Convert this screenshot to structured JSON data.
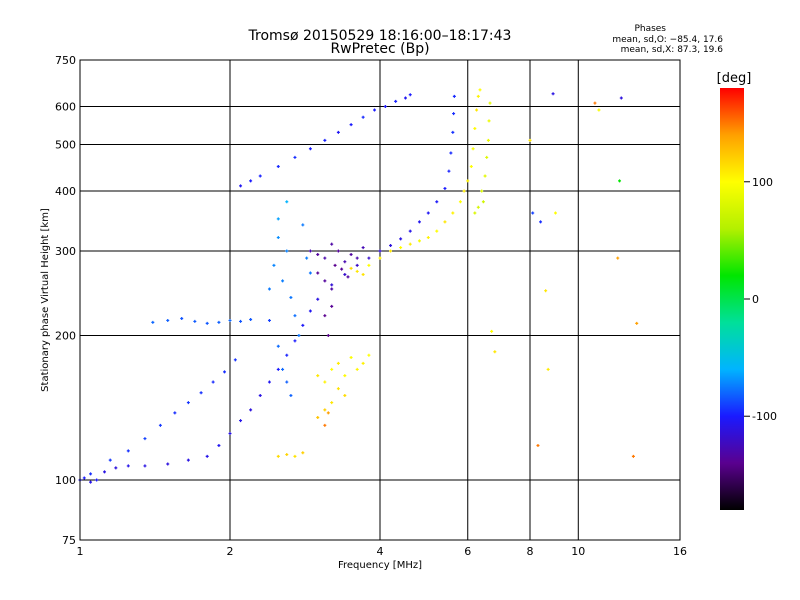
{
  "chart_data": {
    "type": "scatter",
    "title": "Tromsø 20150529 18:16:00–18:17:43",
    "subtitle": "RwPretec (Bp)",
    "xlabel": "Frequency [MHz]",
    "ylabel": "Stationary phase Virtual Height [km]",
    "x_scale": "log",
    "y_scale": "log",
    "xlim": [
      1,
      16
    ],
    "ylim": [
      75,
      750
    ],
    "x_ticks": [
      1,
      2,
      4,
      6,
      8,
      10,
      16
    ],
    "y_ticks": [
      75,
      100,
      200,
      300,
      400,
      500,
      600,
      750
    ],
    "grid": true,
    "stats": {
      "title": "Phases",
      "line_o": "mean, sd,O: −85.4, 17.6",
      "line_x": "mean, sd,X: 87.3, 19.6"
    },
    "colorbar": {
      "label": "[deg]",
      "range": [
        -180,
        180
      ],
      "ticks": [
        100,
        0,
        -100
      ],
      "colors": [
        "#000000",
        "#5a008f",
        "#1a1aff",
        "#00b4ff",
        "#00e09a",
        "#00e600",
        "#b4f000",
        "#ffff00",
        "#ffa000",
        "#ff0000"
      ]
    },
    "series": [
      {
        "values": [
          [
            1.0,
            100,
            -105
          ],
          [
            1.02,
            101,
            -100
          ],
          [
            1.05,
            99,
            -108
          ],
          [
            1.08,
            100,
            -102
          ],
          [
            1.12,
            104,
            -110
          ],
          [
            1.18,
            106,
            -112
          ],
          [
            1.25,
            107,
            -108
          ],
          [
            1.35,
            107,
            -110
          ],
          [
            1.5,
            108,
            -112
          ],
          [
            1.65,
            110,
            -110
          ],
          [
            1.8,
            112,
            -108
          ],
          [
            1.9,
            118,
            -105
          ],
          [
            2.0,
            125,
            -110
          ],
          [
            2.1,
            133,
            -108
          ],
          [
            2.2,
            140,
            -112
          ],
          [
            2.3,
            150,
            -110
          ],
          [
            2.4,
            160,
            -105
          ],
          [
            2.5,
            170,
            -100
          ],
          [
            2.6,
            182,
            -98
          ],
          [
            2.7,
            195,
            -100
          ],
          [
            2.8,
            210,
            -102
          ],
          [
            2.9,
            225,
            -105
          ],
          [
            3.0,
            238,
            -110
          ],
          [
            3.2,
            255,
            -115
          ],
          [
            3.4,
            268,
            -118
          ],
          [
            3.6,
            280,
            -120
          ],
          [
            3.8,
            290,
            -118
          ],
          [
            4.0,
            300,
            -115
          ],
          [
            4.2,
            308,
            -112
          ],
          [
            4.4,
            318,
            -110
          ],
          [
            4.6,
            330,
            -108
          ],
          [
            4.8,
            345,
            -106
          ],
          [
            5.0,
            360,
            -104
          ],
          [
            5.2,
            380,
            -102
          ],
          [
            5.4,
            405,
            -100
          ],
          [
            5.5,
            440,
            -98
          ],
          [
            5.55,
            480,
            -96
          ],
          [
            5.6,
            530,
            -94
          ],
          [
            5.62,
            580,
            -95
          ],
          [
            5.64,
            630,
            -96
          ],
          [
            1.05,
            103,
            -95
          ],
          [
            1.15,
            110,
            -92
          ],
          [
            1.25,
            115,
            -94
          ],
          [
            1.35,
            122,
            -90
          ],
          [
            1.45,
            130,
            -92
          ],
          [
            1.55,
            138,
            -95
          ],
          [
            1.65,
            145,
            -93
          ],
          [
            1.75,
            152,
            -94
          ],
          [
            1.85,
            160,
            -96
          ],
          [
            1.95,
            168,
            -95
          ],
          [
            2.05,
            178,
            -94
          ]
        ]
      },
      {
        "values": [
          [
            1.4,
            213,
            -80
          ],
          [
            1.5,
            215,
            -82
          ],
          [
            1.6,
            217,
            -85
          ],
          [
            1.7,
            214,
            -83
          ],
          [
            1.8,
            212,
            -84
          ],
          [
            1.9,
            213,
            -82
          ],
          [
            2.0,
            215,
            -80
          ],
          [
            2.1,
            214,
            -85
          ],
          [
            2.2,
            216,
            -84
          ],
          [
            2.4,
            215,
            -90
          ],
          [
            2.4,
            250,
            -75
          ],
          [
            2.45,
            280,
            -72
          ],
          [
            2.5,
            320,
            -70
          ],
          [
            2.55,
            260,
            -74
          ],
          [
            2.6,
            300,
            -73
          ],
          [
            2.65,
            240,
            -76
          ],
          [
            2.7,
            220,
            -78
          ],
          [
            2.75,
            200,
            -77
          ],
          [
            2.5,
            190,
            -79
          ],
          [
            2.55,
            170,
            -80
          ],
          [
            2.6,
            160,
            -82
          ],
          [
            2.65,
            150,
            -81
          ],
          [
            2.8,
            340,
            -75
          ],
          [
            2.85,
            290,
            -74
          ],
          [
            2.9,
            270,
            -76
          ],
          [
            2.6,
            380,
            -60
          ],
          [
            2.5,
            350,
            -65
          ]
        ]
      },
      {
        "values": [
          [
            2.9,
            300,
            -128
          ],
          [
            3.0,
            295,
            -135
          ],
          [
            3.1,
            290,
            -130
          ],
          [
            3.2,
            310,
            -132
          ],
          [
            3.3,
            300,
            -136
          ],
          [
            3.4,
            285,
            -128
          ],
          [
            3.5,
            295,
            -134
          ],
          [
            3.6,
            290,
            -130
          ],
          [
            3.7,
            305,
            -126
          ],
          [
            3.0,
            270,
            -138
          ],
          [
            3.1,
            260,
            -135
          ],
          [
            3.2,
            250,
            -132
          ],
          [
            3.25,
            280,
            -140
          ],
          [
            3.35,
            275,
            -137
          ],
          [
            3.45,
            265,
            -134
          ],
          [
            3.1,
            220,
            -140
          ],
          [
            3.2,
            230,
            -138
          ],
          [
            3.15,
            200,
            -142
          ]
        ]
      },
      {
        "values": [
          [
            2.1,
            410,
            -105
          ],
          [
            2.2,
            420,
            -100
          ],
          [
            2.3,
            430,
            -98
          ],
          [
            2.5,
            450,
            -96
          ],
          [
            2.7,
            470,
            -95
          ],
          [
            2.9,
            490,
            -100
          ],
          [
            3.1,
            510,
            -98
          ],
          [
            3.3,
            530,
            -104
          ],
          [
            3.5,
            550,
            -100
          ],
          [
            3.7,
            570,
            -96
          ],
          [
            3.9,
            590,
            -100
          ],
          [
            4.1,
            600,
            -102
          ],
          [
            4.3,
            615,
            -98
          ],
          [
            4.5,
            625,
            -105
          ],
          [
            4.6,
            635,
            -100
          ]
        ]
      },
      {
        "values": [
          [
            3.8,
            280,
            100
          ],
          [
            4.0,
            290,
            105
          ],
          [
            4.2,
            300,
            110
          ],
          [
            4.4,
            305,
            100
          ],
          [
            4.6,
            310,
            108
          ],
          [
            4.8,
            315,
            95
          ],
          [
            5.0,
            320,
            105
          ],
          [
            5.2,
            330,
            100
          ],
          [
            5.4,
            345,
            110
          ],
          [
            5.6,
            360,
            105
          ],
          [
            5.8,
            380,
            100
          ],
          [
            5.9,
            400,
            108
          ],
          [
            6.0,
            420,
            105
          ],
          [
            6.1,
            450,
            100
          ],
          [
            6.15,
            490,
            96
          ],
          [
            6.2,
            540,
            102
          ],
          [
            6.25,
            590,
            110
          ],
          [
            6.3,
            630,
            105
          ],
          [
            6.35,
            650,
            100
          ],
          [
            3.6,
            272,
            110
          ],
          [
            3.7,
            268,
            112
          ],
          [
            3.5,
            276,
            115
          ]
        ]
      },
      {
        "values": [
          [
            6.4,
            400,
            80
          ],
          [
            6.5,
            430,
            85
          ],
          [
            6.55,
            470,
            82
          ],
          [
            6.6,
            510,
            88
          ],
          [
            6.62,
            560,
            90
          ],
          [
            6.65,
            610,
            85
          ],
          [
            6.45,
            380,
            75
          ],
          [
            6.3,
            370,
            78
          ],
          [
            6.2,
            360,
            80
          ]
        ]
      },
      {
        "values": [
          [
            3.0,
            165,
            110
          ],
          [
            3.1,
            160,
            105
          ],
          [
            3.2,
            170,
            100
          ],
          [
            3.3,
            175,
            108
          ],
          [
            3.4,
            165,
            102
          ],
          [
            3.5,
            180,
            98
          ],
          [
            3.6,
            170,
            104
          ],
          [
            3.7,
            175,
            106
          ],
          [
            3.8,
            182,
            100
          ],
          [
            3.3,
            155,
            112
          ],
          [
            3.4,
            150,
            115
          ],
          [
            3.2,
            145,
            110
          ],
          [
            3.1,
            140,
            120
          ],
          [
            3.0,
            135,
            125
          ],
          [
            3.1,
            130,
            150
          ],
          [
            3.15,
            138,
            140
          ]
        ]
      },
      {
        "values": [
          [
            2.5,
            112,
            115
          ],
          [
            2.6,
            113,
            118
          ],
          [
            2.7,
            112,
            112
          ],
          [
            2.8,
            114,
            120
          ]
        ]
      },
      {
        "values": [
          [
            8.1,
            360,
            -90
          ],
          [
            8.4,
            345,
            -95
          ],
          [
            8.9,
            638,
            -110
          ],
          [
            8.6,
            248,
            110
          ],
          [
            8.7,
            170,
            108
          ],
          [
            8.3,
            118,
            150
          ],
          [
            10.8,
            610,
            150
          ],
          [
            11.0,
            590,
            95
          ],
          [
            12.2,
            625,
            -112
          ],
          [
            12.0,
            290,
            140
          ],
          [
            12.1,
            420,
            20
          ],
          [
            13.1,
            212,
            140
          ],
          [
            12.9,
            112,
            150
          ],
          [
            9.0,
            360,
            100
          ],
          [
            8.0,
            510,
            110
          ],
          [
            6.7,
            204,
            100
          ],
          [
            6.8,
            185,
            110
          ]
        ]
      }
    ]
  }
}
